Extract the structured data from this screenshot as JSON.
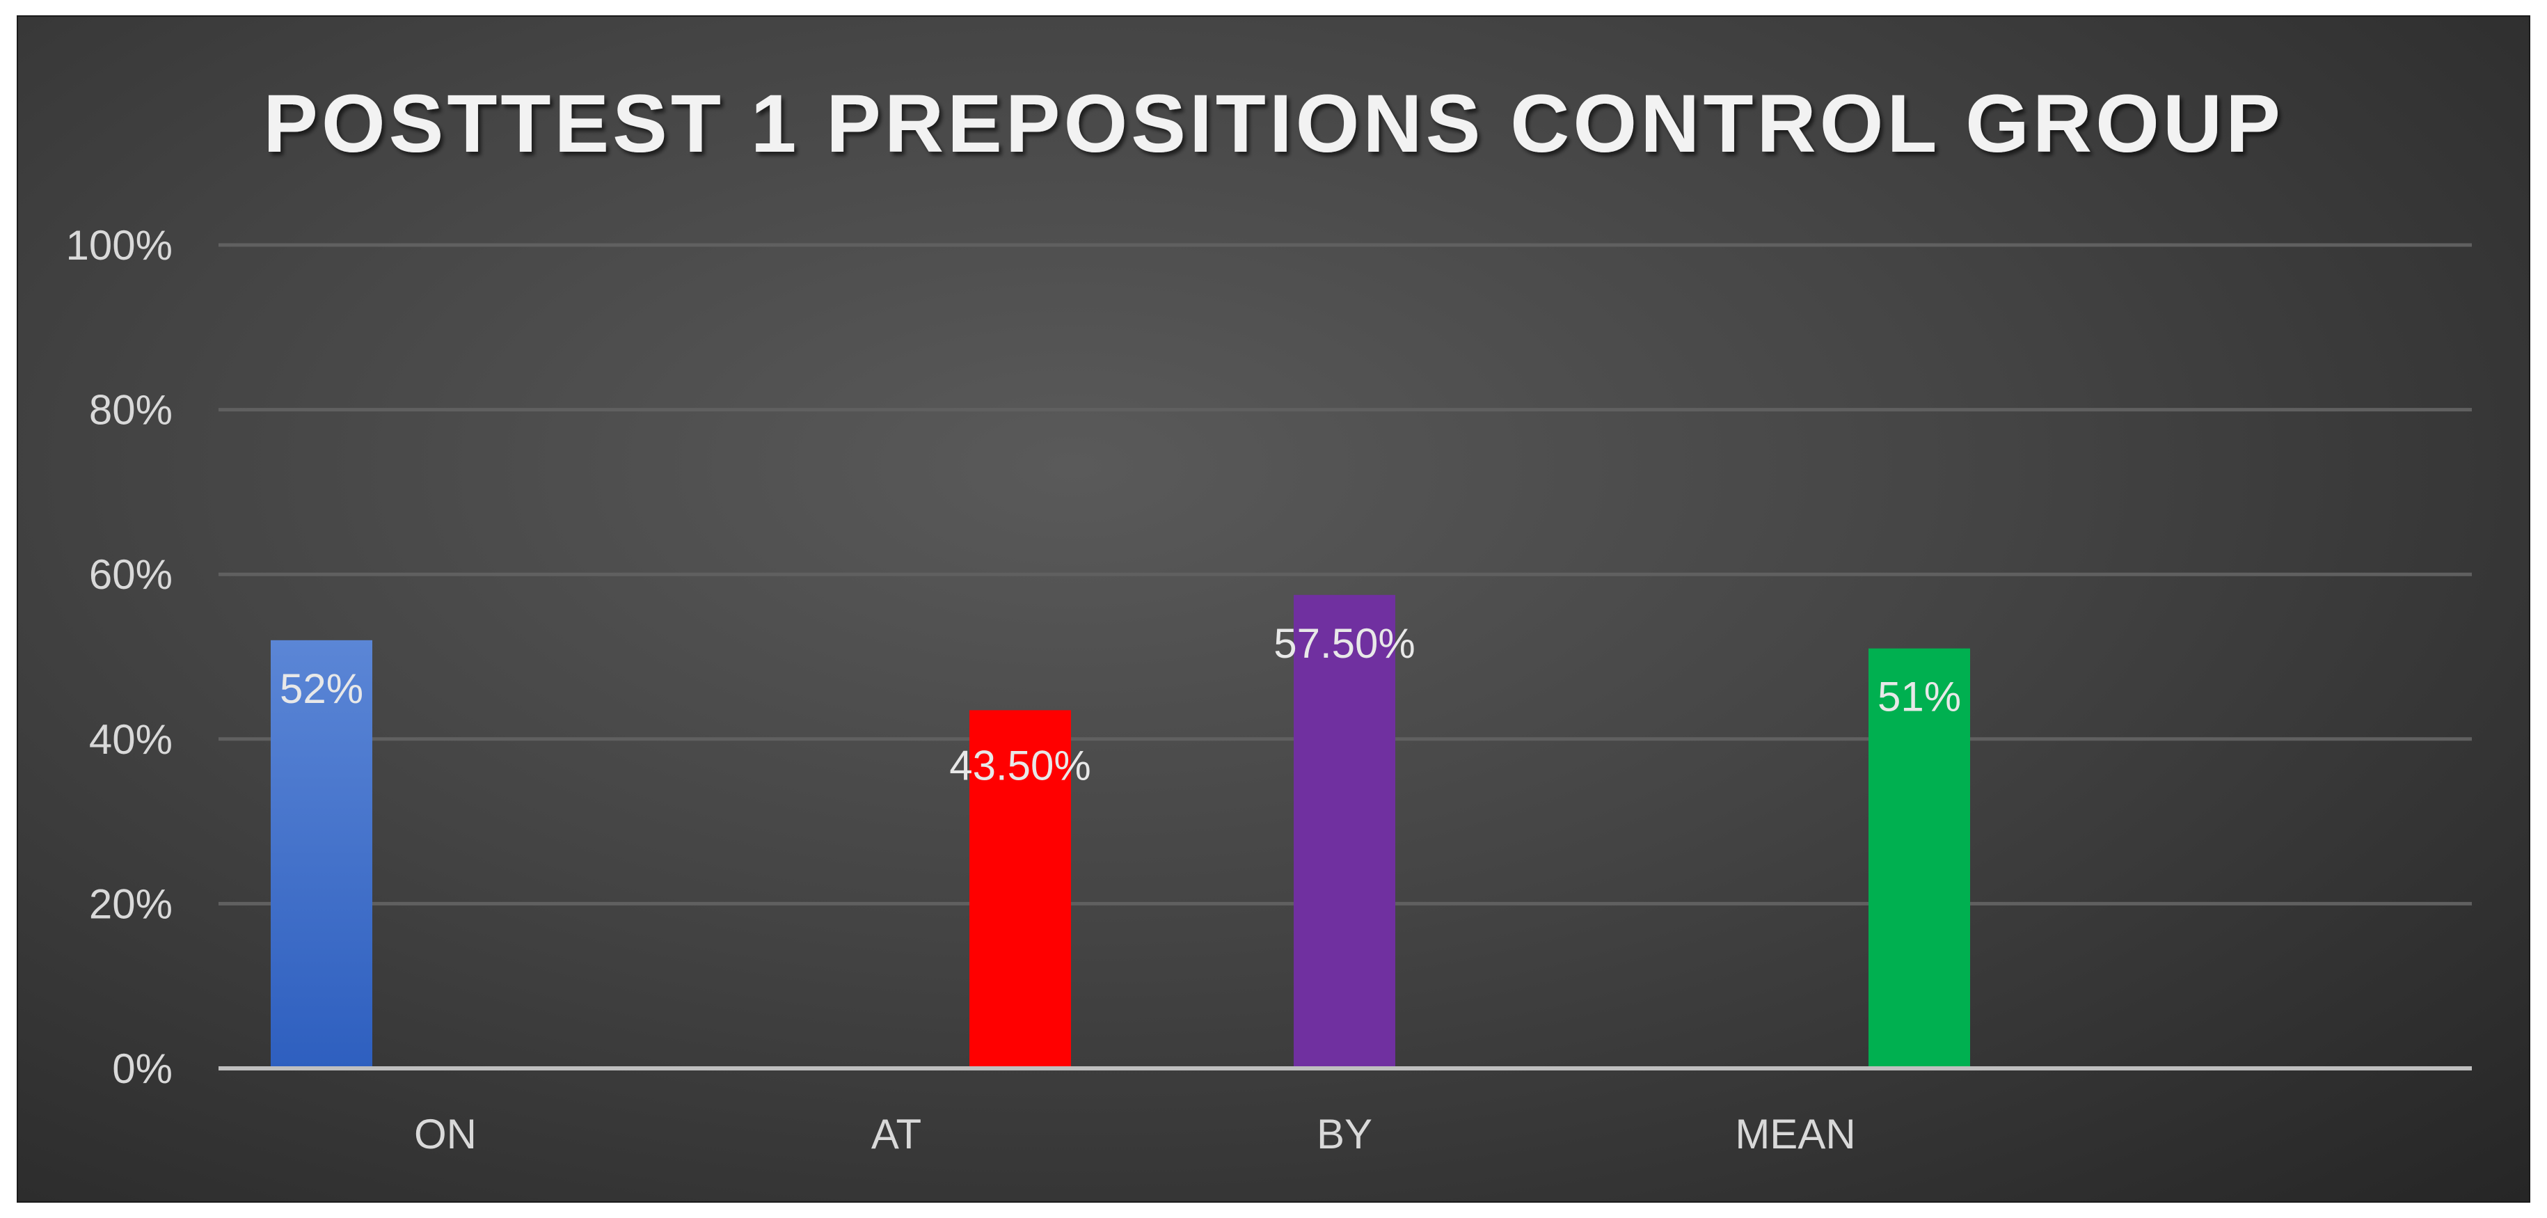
{
  "chart_data": {
    "type": "bar",
    "title": "POSTTEST 1 PREPOSITIONS CONTROL GROUP",
    "xlabel": "",
    "ylabel": "",
    "categories": [
      "ON",
      "AT",
      "BY",
      "MEAN"
    ],
    "values": [
      52,
      43.5,
      57.5,
      51
    ],
    "value_labels": [
      "52%",
      "43.50%",
      "57.50%",
      "51%"
    ],
    "bar_colors": [
      "#4472c4",
      "#ff0000",
      "#7030a0",
      "#00b050"
    ],
    "ylim": [
      0,
      100
    ],
    "y_ticks": [
      0,
      20,
      40,
      60,
      80,
      100
    ],
    "y_tick_labels": [
      "0%",
      "20%",
      "40%",
      "60%",
      "80%",
      "100%"
    ],
    "grid": true,
    "legend": "none"
  }
}
